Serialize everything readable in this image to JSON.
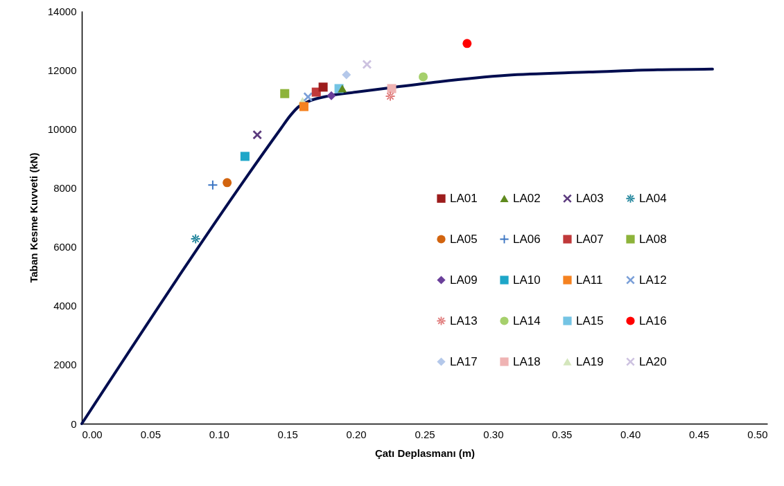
{
  "chart_data": {
    "type": "scatter",
    "xlabel": "Çatı Deplasmanı (m)",
    "ylabel": "Taban Kesme Kuvveti (kN)",
    "xlim": [
      0,
      0.5
    ],
    "xticks": [
      {
        "value": 0,
        "label": "0.00"
      },
      {
        "value": 0.05,
        "label": "0.05"
      },
      {
        "value": 0.1,
        "label": "0.10"
      },
      {
        "value": 0.15,
        "label": "0.15"
      },
      {
        "value": 0.2,
        "label": "0.20"
      },
      {
        "value": 0.25,
        "label": "0.25"
      },
      {
        "value": 0.3,
        "label": "0.30"
      },
      {
        "value": 0.35,
        "label": "0.35"
      },
      {
        "value": 0.4,
        "label": "0.40"
      },
      {
        "value": 0.45,
        "label": "0.45"
      },
      {
        "value": 0.5,
        "label": "0.50"
      }
    ],
    "ylim": [
      0,
      14000
    ],
    "yticks": [
      0,
      2000,
      4000,
      6000,
      8000,
      10000,
      12000,
      14000
    ],
    "grid": false,
    "legend": "bottom right",
    "series": [
      {
        "type": "line",
        "color": "#000d4f",
        "x": [
          0,
          0.145,
          0.152,
          0.158,
          0.166,
          0.18,
          0.2,
          0.225,
          0.26,
          0.31,
          0.37,
          0.42,
          0.46
        ],
        "values": [
          0,
          10000,
          10450,
          10750,
          10950,
          11120,
          11250,
          11400,
          11600,
          11820,
          11930,
          12010,
          12030
        ]
      },
      {
        "name": "LA01",
        "color": "#9c1c1c",
        "marker": "square",
        "x": [
          0.176
        ],
        "values": [
          11420
        ]
      },
      {
        "name": "LA02",
        "color": "#5f8a1e",
        "marker": "triangle",
        "x": [
          0.19
        ],
        "values": [
          11370
        ]
      },
      {
        "name": "LA03",
        "color": "#5c3b7e",
        "marker": "cross",
        "x": [
          0.128
        ],
        "values": [
          9800
        ]
      },
      {
        "name": "LA04",
        "color": "#23869d",
        "marker": "star",
        "x": [
          0.083
        ],
        "values": [
          6270
        ]
      },
      {
        "name": "LA05",
        "color": "#d2640f",
        "marker": "circle",
        "x": [
          0.106
        ],
        "values": [
          8180
        ]
      },
      {
        "name": "LA06",
        "color": "#3a74c2",
        "marker": "plus",
        "x": [
          0.0955
        ],
        "values": [
          8100
        ]
      },
      {
        "name": "LA07",
        "color": "#c0393a",
        "marker": "square",
        "x": [
          0.171
        ],
        "values": [
          11250
        ]
      },
      {
        "name": "LA08",
        "color": "#8db33a",
        "marker": "square",
        "x": [
          0.148
        ],
        "values": [
          11200
        ]
      },
      {
        "name": "LA09",
        "color": "#6a3f9a",
        "marker": "diamond",
        "x": [
          0.182
        ],
        "values": [
          11130
        ]
      },
      {
        "name": "LA10",
        "color": "#1ea6c8",
        "marker": "square",
        "x": [
          0.119
        ],
        "values": [
          9070
        ]
      },
      {
        "name": "LA11",
        "color": "#f58220",
        "marker": "square",
        "x": [
          0.162
        ],
        "values": [
          10760
        ]
      },
      {
        "name": "LA12",
        "color": "#7a9fd8",
        "marker": "cross",
        "x": [
          0.165
        ],
        "values": [
          11090
        ]
      },
      {
        "name": "LA13",
        "color": "#e07a7a",
        "marker": "star",
        "x": [
          0.225
        ],
        "values": [
          11110
        ]
      },
      {
        "name": "LA14",
        "color": "#a6d06c",
        "marker": "circle",
        "x": [
          0.249
        ],
        "values": [
          11770
        ]
      },
      {
        "name": "LA15",
        "color": "#74c4e4",
        "marker": "square",
        "x": [
          0.1876
        ],
        "values": [
          11370
        ]
      },
      {
        "name": "LA16",
        "color": "#ff0000",
        "marker": "circle",
        "x": [
          0.281
        ],
        "values": [
          12900
        ]
      },
      {
        "name": "LA17",
        "color": "#b4c8ea",
        "marker": "diamond",
        "x": [
          0.193
        ],
        "values": [
          11840
        ]
      },
      {
        "name": "LA18",
        "color": "#efb3b3",
        "marker": "square",
        "x": [
          0.226
        ],
        "values": [
          11370
        ]
      },
      {
        "name": "LA19",
        "color": "#d4e6bc",
        "marker": "triangle",
        "x": [
          0.161
        ],
        "values": [
          10950
        ]
      },
      {
        "name": "LA20",
        "color": "#cdc2e0",
        "marker": "cross",
        "x": [
          0.208
        ],
        "values": [
          12190
        ]
      }
    ]
  }
}
